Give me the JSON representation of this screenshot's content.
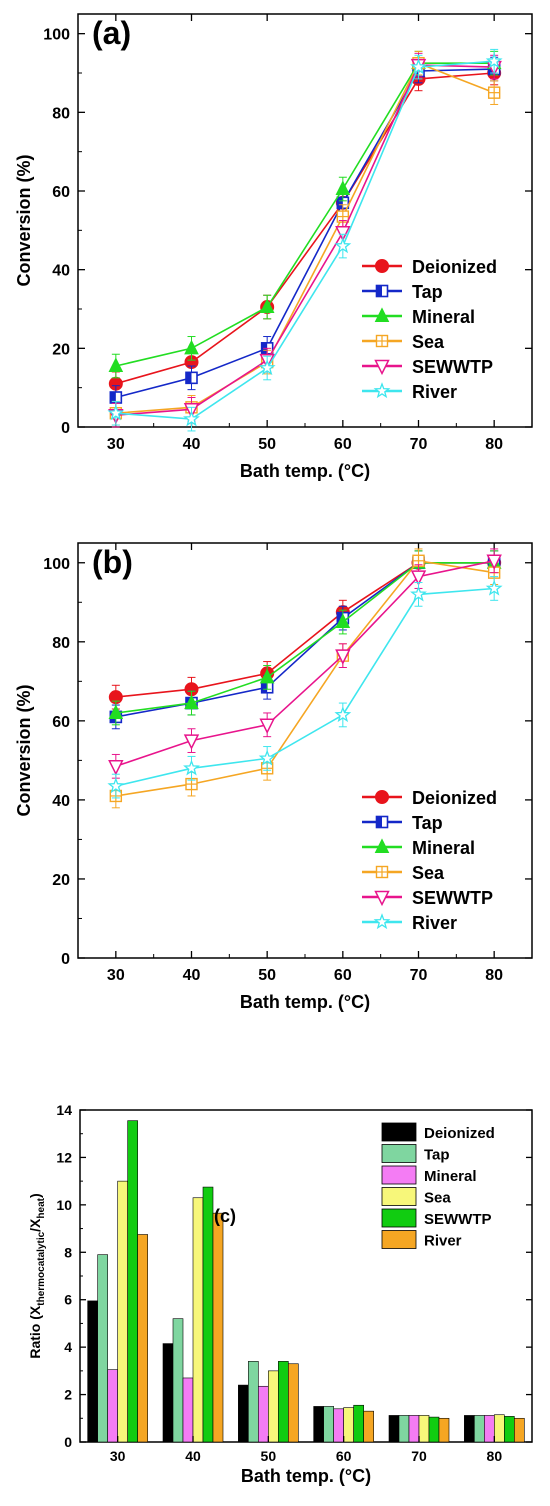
{
  "chart_data": [
    {
      "type": "line",
      "panel_label": "(a)",
      "xlabel": "Bath temp. (°C)",
      "ylabel": "Conversion (%)",
      "x": [
        30,
        40,
        50,
        60,
        70,
        80
      ],
      "xlim": [
        25,
        85
      ],
      "ylim": [
        0,
        105
      ],
      "xticks": [
        "30",
        "40",
        "50",
        "60",
        "70",
        "80"
      ],
      "yticks": [
        "0",
        "20",
        "40",
        "60",
        "80",
        "100"
      ],
      "grid": false,
      "legend_position": "right-middle",
      "series": [
        {
          "name": "Deionized",
          "color": "#e8141c",
          "marker": "circle-filled",
          "values": [
            11,
            16.5,
            30.5,
            57,
            88.5,
            90
          ]
        },
        {
          "name": "Tap",
          "color": "#1428c8",
          "marker": "square-half",
          "values": [
            7.5,
            12.5,
            20,
            57,
            90.5,
            91
          ]
        },
        {
          "name": "Mineral",
          "color": "#22dd22",
          "marker": "triangle-filled",
          "values": [
            15.5,
            20,
            30.5,
            60.5,
            92.5,
            92.5
          ]
        },
        {
          "name": "Sea",
          "color": "#f5a623",
          "marker": "square-cross",
          "values": [
            3.5,
            5,
            16.5,
            53.5,
            92.5,
            85
          ]
        },
        {
          "name": "SEWWTP",
          "color": "#e8148c",
          "marker": "triangle-down-open",
          "values": [
            3,
            4.5,
            17,
            49.5,
            92,
            91.5
          ]
        },
        {
          "name": "River",
          "color": "#3ee6ee",
          "marker": "star-open",
          "values": [
            3.5,
            2,
            15,
            46,
            91.5,
            93
          ]
        }
      ]
    },
    {
      "type": "line",
      "panel_label": "(b)",
      "xlabel": "Bath temp. (°C)",
      "ylabel": "Conversion (%)",
      "x": [
        30,
        40,
        50,
        60,
        70,
        80
      ],
      "xlim": [
        25,
        85
      ],
      "ylim": [
        0,
        105
      ],
      "xticks": [
        "30",
        "40",
        "50",
        "60",
        "70",
        "80"
      ],
      "yticks": [
        "0",
        "20",
        "40",
        "60",
        "80",
        "100"
      ],
      "grid": false,
      "legend_position": "right-middle",
      "series": [
        {
          "name": "Deionized",
          "color": "#e8141c",
          "marker": "circle-filled",
          "values": [
            66,
            68,
            72,
            87.5,
            100,
            100
          ]
        },
        {
          "name": "Tap",
          "color": "#1428c8",
          "marker": "square-half",
          "values": [
            61,
            64.5,
            68.5,
            86,
            100,
            100
          ]
        },
        {
          "name": "Mineral",
          "color": "#22dd22",
          "marker": "triangle-filled",
          "values": [
            62,
            64.5,
            71,
            85,
            100,
            100
          ]
        },
        {
          "name": "Sea",
          "color": "#f5a623",
          "marker": "square-cross",
          "values": [
            41,
            44,
            48,
            76.5,
            100.5,
            97.5
          ]
        },
        {
          "name": "SEWWTP",
          "color": "#e8148c",
          "marker": "triangle-down-open",
          "values": [
            48.5,
            55,
            59,
            76.5,
            96.5,
            100.5
          ]
        },
        {
          "name": "River",
          "color": "#3ee6ee",
          "marker": "star-open",
          "values": [
            43.5,
            48,
            50.5,
            61.5,
            92,
            93.5
          ]
        }
      ]
    },
    {
      "type": "bar",
      "panel_label": "(c)",
      "xlabel": "Bath temp. (°C)",
      "ylabel_main": "Ratio (X",
      "ylabel_sub1": "thermocatalytic",
      "ylabel_mid": "/X",
      "ylabel_sub2": "heat",
      "ylabel_end": ")",
      "categories": [
        "30",
        "40",
        "50",
        "60",
        "70",
        "80"
      ],
      "ylim": [
        0,
        14
      ],
      "yticks": [
        "0",
        "2",
        "4",
        "6",
        "8",
        "10",
        "12",
        "14"
      ],
      "grid": false,
      "legend_position": "top-right",
      "series": [
        {
          "name": "Deionized",
          "color": "#000000",
          "values": [
            5.95,
            4.15,
            2.4,
            1.5,
            1.12,
            1.12
          ]
        },
        {
          "name": "Tap",
          "color": "#7fd6a0",
          "values": [
            7.9,
            5.2,
            3.4,
            1.5,
            1.12,
            1.12
          ]
        },
        {
          "name": "Mineral",
          "color": "#f47cf4",
          "values": [
            3.05,
            2.7,
            2.35,
            1.4,
            1.12,
            1.12
          ]
        },
        {
          "name": "Sea",
          "color": "#f7f77a",
          "values": [
            11,
            10.3,
            3.0,
            1.45,
            1.12,
            1.15
          ]
        },
        {
          "name": "SEWWTP",
          "color": "#11cc11",
          "values": [
            13.55,
            10.75,
            3.4,
            1.55,
            1.05,
            1.08
          ]
        },
        {
          "name": "River",
          "color": "#f5a623",
          "values": [
            8.75,
            9.65,
            3.3,
            1.3,
            1.0,
            1.0
          ]
        }
      ]
    }
  ]
}
